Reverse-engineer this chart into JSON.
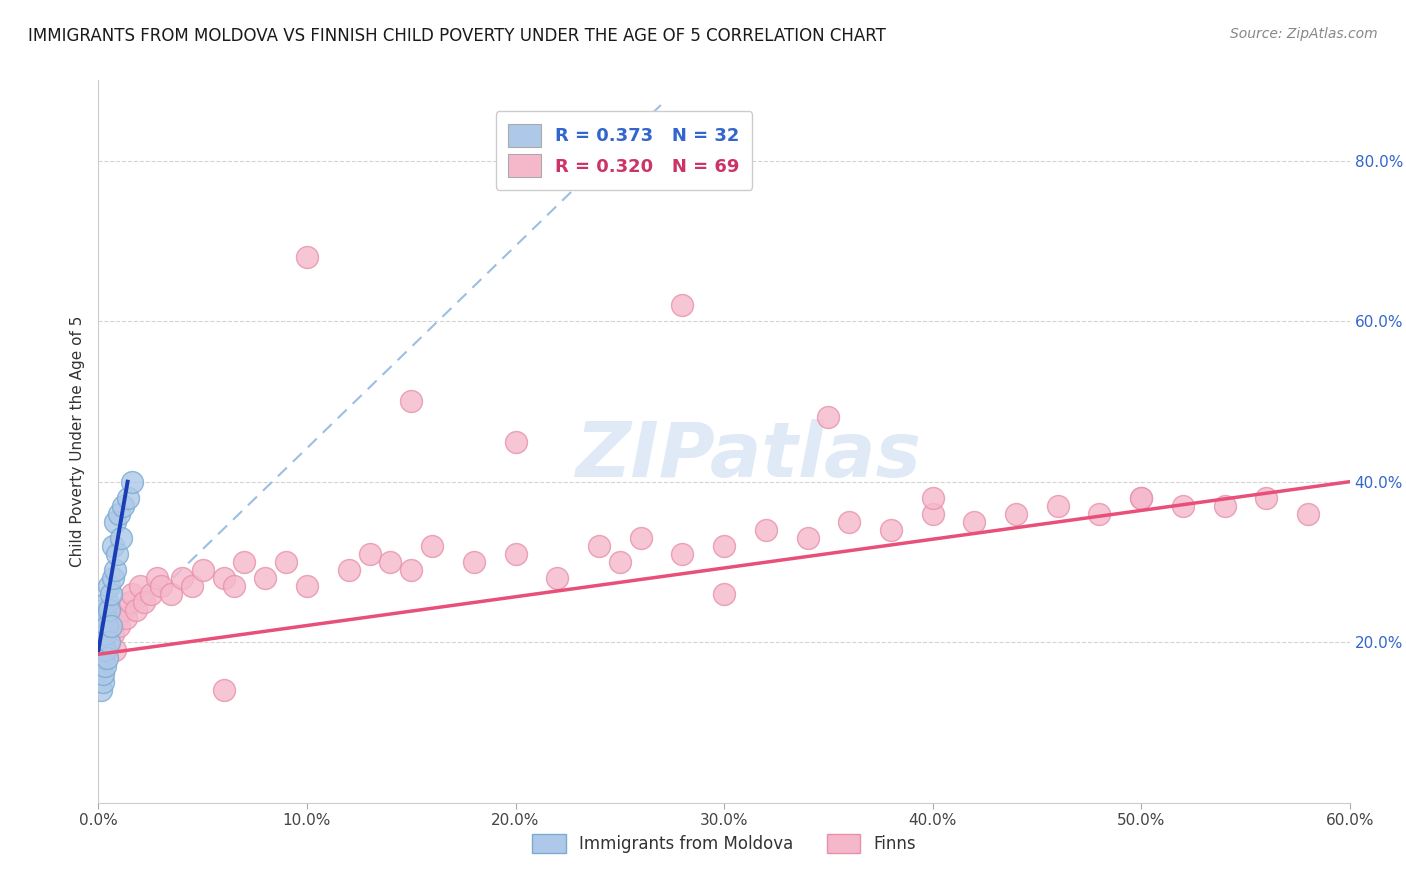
{
  "title": "IMMIGRANTS FROM MOLDOVA VS FINNISH CHILD POVERTY UNDER THE AGE OF 5 CORRELATION CHART",
  "source": "Source: ZipAtlas.com",
  "ylabel": "Child Poverty Under the Age of 5",
  "xlim": [
    0.0,
    0.6
  ],
  "ylim": [
    0.0,
    0.9
  ],
  "xticks": [
    0.0,
    0.1,
    0.2,
    0.3,
    0.4,
    0.5,
    0.6
  ],
  "xticklabels": [
    "0.0%",
    "10.0%",
    "20.0%",
    "30.0%",
    "40.0%",
    "50.0%",
    "60.0%"
  ],
  "yticks": [
    0.2,
    0.4,
    0.6,
    0.8
  ],
  "yticklabels": [
    "20.0%",
    "40.0%",
    "60.0%",
    "80.0%"
  ],
  "scatter_blue": {
    "x": [
      0.001,
      0.001,
      0.001,
      0.001,
      0.002,
      0.002,
      0.002,
      0.002,
      0.002,
      0.002,
      0.003,
      0.003,
      0.003,
      0.003,
      0.004,
      0.004,
      0.004,
      0.005,
      0.005,
      0.005,
      0.006,
      0.006,
      0.007,
      0.007,
      0.008,
      0.008,
      0.009,
      0.01,
      0.011,
      0.012,
      0.014,
      0.016
    ],
    "y": [
      0.14,
      0.17,
      0.19,
      0.21,
      0.15,
      0.16,
      0.18,
      0.2,
      0.22,
      0.24,
      0.17,
      0.19,
      0.21,
      0.23,
      0.18,
      0.22,
      0.25,
      0.2,
      0.24,
      0.27,
      0.22,
      0.26,
      0.28,
      0.32,
      0.29,
      0.35,
      0.31,
      0.36,
      0.33,
      0.37,
      0.38,
      0.4
    ]
  },
  "scatter_pink": {
    "x": [
      0.001,
      0.002,
      0.002,
      0.003,
      0.003,
      0.004,
      0.005,
      0.005,
      0.006,
      0.007,
      0.008,
      0.009,
      0.01,
      0.012,
      0.013,
      0.015,
      0.016,
      0.018,
      0.02,
      0.022,
      0.025,
      0.028,
      0.03,
      0.035,
      0.04,
      0.045,
      0.05,
      0.06,
      0.065,
      0.07,
      0.08,
      0.09,
      0.1,
      0.12,
      0.13,
      0.14,
      0.15,
      0.16,
      0.18,
      0.2,
      0.22,
      0.24,
      0.25,
      0.26,
      0.28,
      0.3,
      0.32,
      0.34,
      0.36,
      0.38,
      0.4,
      0.42,
      0.44,
      0.46,
      0.48,
      0.5,
      0.52,
      0.54,
      0.56,
      0.58,
      0.1,
      0.15,
      0.2,
      0.28,
      0.35,
      0.3,
      0.4,
      0.5,
      0.06
    ],
    "y": [
      0.2,
      0.18,
      0.22,
      0.19,
      0.23,
      0.21,
      0.2,
      0.24,
      0.22,
      0.21,
      0.19,
      0.23,
      0.22,
      0.24,
      0.23,
      0.25,
      0.26,
      0.24,
      0.27,
      0.25,
      0.26,
      0.28,
      0.27,
      0.26,
      0.28,
      0.27,
      0.29,
      0.28,
      0.27,
      0.3,
      0.28,
      0.3,
      0.27,
      0.29,
      0.31,
      0.3,
      0.29,
      0.32,
      0.3,
      0.31,
      0.28,
      0.32,
      0.3,
      0.33,
      0.31,
      0.32,
      0.34,
      0.33,
      0.35,
      0.34,
      0.36,
      0.35,
      0.36,
      0.37,
      0.36,
      0.38,
      0.37,
      0.37,
      0.38,
      0.36,
      0.68,
      0.5,
      0.45,
      0.62,
      0.48,
      0.26,
      0.38,
      0.38,
      0.14
    ]
  },
  "blue_line_solid": {
    "x": [
      0.0,
      0.014
    ],
    "y": [
      0.19,
      0.4
    ]
  },
  "blue_line_dashed": {
    "x": [
      0.0,
      0.27
    ],
    "y": [
      0.19,
      0.87
    ]
  },
  "pink_line": {
    "x": [
      0.0,
      0.6
    ],
    "y": [
      0.185,
      0.4
    ]
  },
  "watermark": "ZIPatlas",
  "background_color": "#ffffff",
  "grid_color": "#c8c8c8",
  "scatter_blue_color": "#adc8e8",
  "scatter_pink_color": "#f5b8cb",
  "scatter_blue_edge": "#7aaad0",
  "scatter_pink_edge": "#e890aa",
  "blue_line_color": "#1a3db5",
  "blue_dashed_color": "#90b8e0",
  "pink_line_color": "#e8507a",
  "legend_text_blue": "#3366cc",
  "legend_text_pink": "#cc3366",
  "title_color": "#1a1a1a",
  "axis_label_color": "#333333",
  "yticklabel_color": "#3366cc",
  "xticklabel_color": "#444444"
}
